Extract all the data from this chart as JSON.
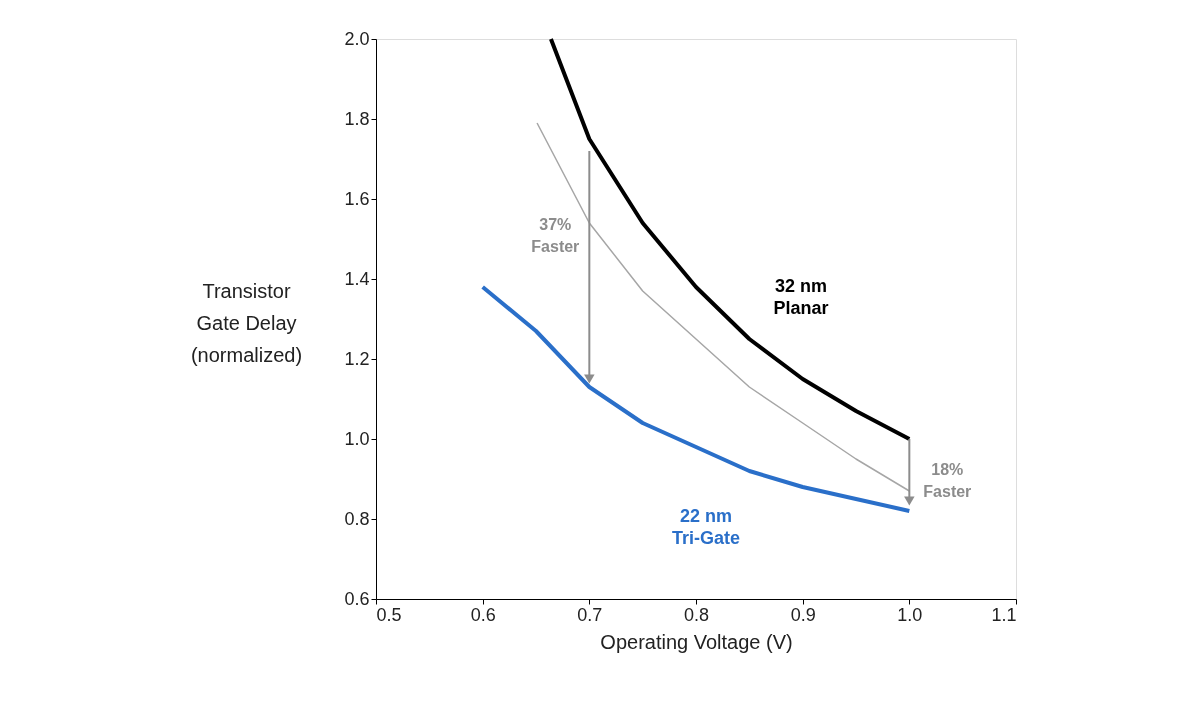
{
  "chart_data": {
    "type": "line",
    "xlabel": "Operating Voltage (V)",
    "ylabel": [
      "Transistor",
      "Gate Delay",
      "(normalized)"
    ],
    "xlim": [
      0.5,
      1.1
    ],
    "ylim": [
      0.6,
      2.0
    ],
    "xticks": [
      {
        "value": 0.5,
        "label": "0.5"
      },
      {
        "value": 0.6,
        "label": "0.6"
      },
      {
        "value": 0.7,
        "label": "0.7"
      },
      {
        "value": 0.8,
        "label": "0.8"
      },
      {
        "value": 0.9,
        "label": "0.9"
      },
      {
        "value": 1.0,
        "label": "1.0"
      },
      {
        "value": 1.1,
        "label": "1.1"
      }
    ],
    "yticks": [
      {
        "value": 0.6,
        "label": "0.6"
      },
      {
        "value": 0.8,
        "label": "0.8"
      },
      {
        "value": 1.0,
        "label": "1.0"
      },
      {
        "value": 1.2,
        "label": "1.2"
      },
      {
        "value": 1.4,
        "label": "1.4"
      },
      {
        "value": 1.6,
        "label": "1.6"
      },
      {
        "value": 1.8,
        "label": "1.8"
      },
      {
        "value": 2.0,
        "label": "2.0"
      }
    ],
    "grid": false,
    "legend": false,
    "marker": "none",
    "line_style": "solid",
    "series": [
      {
        "name": "32 nm\nPlanar",
        "color": "#000000",
        "x": [
          0.664,
          0.7,
          0.75,
          0.8,
          0.85,
          0.9,
          0.95,
          1.0
        ],
        "values": [
          2.0,
          1.75,
          1.54,
          1.38,
          1.25,
          1.15,
          1.07,
          1.0
        ]
      },
      {
        "color": "#a6a6a6",
        "x": [
          0.651,
          0.7,
          0.75,
          0.8,
          0.85,
          0.9,
          0.95,
          1.0
        ],
        "values": [
          1.79,
          1.54,
          1.37,
          1.25,
          1.13,
          1.04,
          0.95,
          0.87
        ]
      },
      {
        "name": "22 nm\nTri-Gate",
        "color": "#2a6fc9",
        "x": [
          0.6,
          0.65,
          0.7,
          0.75,
          0.8,
          0.85,
          0.9,
          0.95,
          1.0
        ],
        "values": [
          1.38,
          1.27,
          1.13,
          1.04,
          0.98,
          0.92,
          0.88,
          0.85,
          0.82
        ]
      },
      {
        "color": "#8c8c8c",
        "marker": "triangle",
        "x": [
          0.7,
          0.7
        ],
        "values": [
          1.72,
          1.15
        ]
      },
      {
        "color": "#8c8c8c",
        "marker": "triangle",
        "x": [
          1.0,
          1.0
        ],
        "values": [
          1.0,
          0.845
        ]
      }
    ],
    "annotations": [
      "37%\nFaster",
      "18%\nFaster"
    ]
  }
}
